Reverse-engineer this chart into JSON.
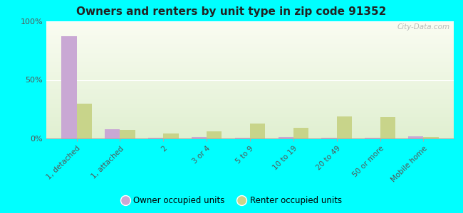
{
  "title": "Owners and renters by unit type in zip code 91352",
  "categories": [
    "1, detached",
    "1, attached",
    "2",
    "3 or 4",
    "5 to 9",
    "10 to 19",
    "20 to 49",
    "50 or more",
    "Mobile home"
  ],
  "owner_values": [
    87,
    8,
    0.5,
    1,
    0.5,
    1,
    0.5,
    0.5,
    2
  ],
  "renter_values": [
    30,
    7,
    4,
    6,
    13,
    9,
    19,
    18,
    1
  ],
  "owner_color": "#c9a8d4",
  "renter_color": "#c8d48a",
  "owner_label": "Owner occupied units",
  "renter_label": "Renter occupied units",
  "ylim": [
    0,
    100
  ],
  "yticks": [
    0,
    50,
    100
  ],
  "ytick_labels": [
    "0%",
    "50%",
    "100%"
  ],
  "bg_top_color": "#f5faf0",
  "bg_bottom_color": "#d8eecc",
  "outer_background": "#00ffff",
  "watermark": "City-Data.com",
  "bar_width": 0.35
}
